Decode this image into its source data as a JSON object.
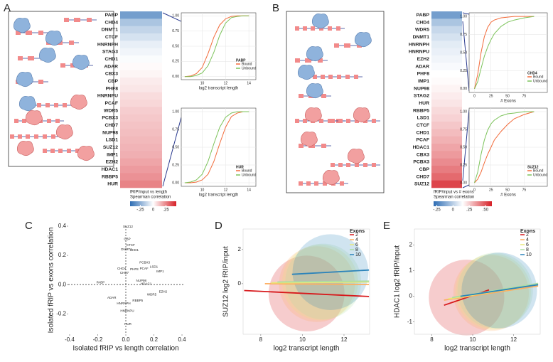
{
  "chart_data": [
    {
      "type": "heatmap",
      "panel": "A",
      "categories": [
        "PABP",
        "CHD4",
        "DNMT1",
        "CTCF",
        "HNRNPH",
        "STAG3",
        "CHD1",
        "ADAR",
        "CBX3",
        "CBP",
        "PHF8",
        "HNRNPU",
        "PCAF",
        "WDR5",
        "PCBX3",
        "CHD7",
        "NUP98",
        "LSD1",
        "SUZ12",
        "IMP1",
        "EZH2",
        "HDAC1",
        "RBBP5",
        "HUR"
      ],
      "values": [
        -0.3,
        -0.18,
        -0.13,
        -0.09,
        -0.05,
        -0.03,
        -0.01,
        0.01,
        0.02,
        0.04,
        0.05,
        0.07,
        0.08,
        0.1,
        0.11,
        0.12,
        0.13,
        0.14,
        0.15,
        0.16,
        0.18,
        0.2,
        0.22,
        0.25
      ],
      "colorbar_title": [
        "fRIP/input vs length",
        "Spearman correlation"
      ],
      "clim": [
        -0.45,
        0.45
      ],
      "colormap": [
        "#2e6db4",
        "#ffffff",
        "#d61f26"
      ],
      "colorbar_ticks": [
        {
          "value": -0.25,
          "label": "-.25"
        },
        0,
        {
          "value": 0.25,
          "label": ".25"
        }
      ]
    },
    {
      "type": "line",
      "legend_title": "PABP",
      "legend": "lower right",
      "grid": true,
      "x": [
        8.5,
        9,
        9.5,
        10,
        10.5,
        11,
        11.5,
        12,
        12.5,
        13,
        13.5,
        14
      ],
      "series": [
        {
          "name": "Bound",
          "color": "#f26b3a",
          "values": [
            0,
            0.01,
            0.05,
            0.15,
            0.38,
            0.65,
            0.85,
            0.95,
            0.99,
            1,
            1,
            1
          ]
        },
        {
          "name": "Unbound",
          "color": "#7cc35a",
          "values": [
            0,
            0,
            0.02,
            0.06,
            0.18,
            0.4,
            0.68,
            0.88,
            0.97,
            0.99,
            1,
            1
          ]
        }
      ],
      "xlabel": "log2 transcript length",
      "xlim": [
        8.2,
        14.6
      ],
      "xticks": [
        10,
        12,
        14
      ],
      "ylim": [
        -0.05,
        1.05
      ],
      "yticks": [
        {
          "value": 0,
          "label": "0.00"
        },
        {
          "value": 0.25,
          "label": "0.25"
        },
        {
          "value": 0.5,
          "label": "0.50"
        },
        {
          "value": 0.75,
          "label": "0.75"
        },
        {
          "value": 1,
          "label": "1.00"
        }
      ]
    },
    {
      "type": "line",
      "legend_title": "HUR",
      "legend": "lower right",
      "grid": true,
      "x": [
        8.5,
        9,
        9.5,
        10,
        10.5,
        11,
        11.5,
        12,
        12.5,
        13,
        13.5,
        14
      ],
      "series": [
        {
          "name": "Bound",
          "color": "#f26b3a",
          "values": [
            0,
            0,
            0.01,
            0.04,
            0.12,
            0.3,
            0.55,
            0.78,
            0.93,
            0.98,
            1,
            1
          ]
        },
        {
          "name": "Unbound",
          "color": "#7cc35a",
          "values": [
            0,
            0.01,
            0.04,
            0.12,
            0.3,
            0.55,
            0.78,
            0.92,
            0.98,
            1,
            1,
            1
          ]
        }
      ],
      "xlabel": "log2 transcript length",
      "xlim": [
        8.2,
        14.6
      ],
      "xticks": [
        10,
        12,
        14
      ],
      "ylim": [
        -0.05,
        1.05
      ],
      "yticks": [
        {
          "value": 0,
          "label": "0.00"
        },
        {
          "value": 0.25,
          "label": "0.25"
        },
        {
          "value": 0.5,
          "label": "0.50"
        },
        {
          "value": 0.75,
          "label": "0.75"
        },
        {
          "value": 1,
          "label": "1.00"
        }
      ]
    },
    {
      "type": "heatmap",
      "panel": "B",
      "categories": [
        "PABP",
        "CHD4",
        "WDR5",
        "DNMT1",
        "HNRNPH",
        "HNRNPU",
        "EZH2",
        "ADAR",
        "PHF8",
        "IMP1",
        "NUP98",
        "STAG2",
        "HUR",
        "RBBP5",
        "LSD1",
        "CTCF",
        "CHD1",
        "PCAF",
        "HDAC1",
        "CBX3",
        "PCBX3",
        "CBP",
        "CHD7",
        "SUZ12"
      ],
      "values": [
        -0.2,
        -0.12,
        -0.08,
        -0.06,
        -0.04,
        -0.03,
        -0.02,
        -0.01,
        0,
        0.01,
        0.03,
        0.05,
        0.07,
        0.1,
        0.12,
        0.15,
        0.18,
        0.21,
        0.24,
        0.27,
        0.31,
        0.35,
        0.4,
        0.5
      ],
      "colorbar_title": [
        "fRIP/input vs # exons",
        "Spearman correlation"
      ],
      "clim": [
        -0.3,
        0.6
      ],
      "colormap": [
        "#2e6db4",
        "#ffffff",
        "#d61f26"
      ],
      "colorbar_ticks": [
        {
          "value": -0.25,
          "label": "-.25"
        },
        0,
        {
          "value": 0.25,
          "label": ".25"
        },
        {
          "value": 0.5,
          "label": ".50"
        }
      ]
    },
    {
      "type": "line",
      "legend_title": "CHD4",
      "legend": "lower right",
      "grid": true,
      "x": [
        0,
        5,
        10,
        15,
        20,
        25,
        30,
        40,
        50,
        60,
        75,
        90
      ],
      "series": [
        {
          "name": "Bound",
          "color": "#f26b3a",
          "values": [
            0,
            0.2,
            0.5,
            0.72,
            0.85,
            0.92,
            0.95,
            0.98,
            0.99,
            1,
            1,
            1
          ]
        },
        {
          "name": "Unbound",
          "color": "#7cc35a",
          "values": [
            0,
            0.1,
            0.28,
            0.45,
            0.58,
            0.68,
            0.76,
            0.86,
            0.92,
            0.95,
            0.98,
            1
          ]
        }
      ],
      "xlabel": "# Exons",
      "xlim": [
        -8,
        110
      ],
      "xticks": [
        0,
        25,
        50,
        75
      ],
      "ylim": [
        -0.05,
        1.05
      ],
      "yticks": [
        {
          "value": 0,
          "label": "0.00"
        },
        {
          "value": 0.25,
          "label": "0.25"
        },
        {
          "value": 0.5,
          "label": "0.50"
        },
        {
          "value": 0.75,
          "label": "0.75"
        },
        {
          "value": 1,
          "label": "1.00"
        }
      ]
    },
    {
      "type": "line",
      "legend_title": "SUZ12",
      "legend": "lower right",
      "grid": true,
      "x": [
        0,
        5,
        10,
        15,
        20,
        25,
        30,
        40,
        50,
        60,
        75,
        90
      ],
      "series": [
        {
          "name": "Bound",
          "color": "#f26b3a",
          "values": [
            0,
            0.05,
            0.15,
            0.28,
            0.4,
            0.5,
            0.6,
            0.72,
            0.82,
            0.9,
            0.96,
            1
          ]
        },
        {
          "name": "Unbound",
          "color": "#7cc35a",
          "values": [
            0,
            0.15,
            0.4,
            0.6,
            0.74,
            0.83,
            0.88,
            0.94,
            0.97,
            0.98,
            1,
            1
          ]
        }
      ],
      "xlabel": "# Exons",
      "xlim": [
        -8,
        110
      ],
      "xticks": [
        0,
        25,
        50,
        75
      ],
      "ylim": [
        -0.05,
        1.05
      ],
      "yticks": [
        {
          "value": 0,
          "label": "0.00"
        },
        {
          "value": 0.25,
          "label": "0.25"
        },
        {
          "value": 0.5,
          "label": "0.50"
        },
        {
          "value": 0.75,
          "label": "0.75"
        },
        {
          "value": 1,
          "label": "1.00"
        }
      ]
    },
    {
      "type": "scatter",
      "panel": "C",
      "labels": [
        "PABP",
        "SUZ12",
        "CBP",
        "CTCF",
        "DNMT1",
        "CHD1",
        "PCBX3",
        "CHD4",
        "CHD7",
        "PHF8",
        "PCAF",
        "LSD1",
        "IMP1",
        "NUP98",
        "HDAC1",
        "WDR5",
        "EZH2",
        "RBBP5",
        "ADAR",
        "HNRNPH",
        "HNRNPU",
        "HUR"
      ],
      "x": [
        -0.18,
        0.015,
        0.01,
        0.035,
        0.005,
        0.06,
        0.135,
        -0.03,
        -0.01,
        0.06,
        0.13,
        0.2,
        0.245,
        0.11,
        0.145,
        0.185,
        0.265,
        0.085,
        -0.1,
        -0.015,
        0.01,
        0.015
      ],
      "values": [
        0.015,
        0.395,
        0.31,
        0.27,
        0.24,
        0.235,
        0.15,
        0.11,
        0.08,
        0.105,
        0.11,
        0.12,
        0.09,
        0.025,
        0.005,
        -0.07,
        -0.05,
        -0.11,
        -0.09,
        -0.13,
        -0.18,
        -0.27
      ],
      "xlabel": "Isolated fRIP vs length correlation",
      "ylabel": "Isolated fRIP vs exons correlation",
      "zero_lines": true,
      "xlim": [
        -0.41,
        0.41
      ],
      "xticks": [
        {
          "value": -0.4,
          "label": "-0.4"
        },
        {
          "value": -0.2,
          "label": "-0.2"
        },
        {
          "value": 0,
          "label": "0.0"
        },
        {
          "value": 0.2,
          "label": "0.2"
        },
        {
          "value": 0.4,
          "label": "0.4"
        }
      ],
      "ylim": [
        -0.34,
        0.4
      ],
      "yticks": [
        {
          "value": -0.2,
          "label": "-0.2"
        },
        {
          "value": 0,
          "label": "0.0"
        },
        {
          "value": 0.2,
          "label": "0.2"
        },
        {
          "value": 0.4,
          "label": "0.4"
        }
      ]
    },
    {
      "type": "line",
      "panel": "D",
      "legend_title": "Exons",
      "legend": "upper right",
      "series": [
        {
          "name": "2",
          "color": "#d7191c",
          "x": [
            7.2,
            13.2
          ],
          "values": [
            -0.4,
            -0.75
          ]
        },
        {
          "name": "4",
          "color": "#fdae61",
          "x": [
            8.2,
            13.2
          ],
          "values": [
            0.0,
            -0.05
          ]
        },
        {
          "name": "6",
          "color": "#e8e87a",
          "x": [
            8.5,
            13.2
          ],
          "values": [
            0.05,
            0.1
          ]
        },
        {
          "name": "8",
          "color": "#abdda4",
          "x": [
            8.8,
            13.2
          ],
          "values": [
            0.1,
            0.15
          ]
        },
        {
          "name": "10",
          "color": "#2b83ba",
          "x": [
            9.5,
            13.2
          ],
          "values": [
            0.55,
            0.8
          ]
        }
      ],
      "xlabel": "log2 transcript length",
      "ylabel": "SUZ12 log2 fRIP/input",
      "xlim": [
        7.15,
        13.23
      ],
      "xticks": [
        8,
        10,
        12
      ],
      "ylim": [
        -2.96,
        3.2
      ],
      "yticks": [
        0,
        2
      ]
    },
    {
      "type": "line",
      "panel": "E",
      "legend_title": "Exons",
      "legend": "upper right",
      "series": [
        {
          "name": "2",
          "color": "#d7191c",
          "x": [
            8.6,
            10.8
          ],
          "values": [
            -0.35,
            0.25
          ]
        },
        {
          "name": "4",
          "color": "#fdae61",
          "x": [
            8.6,
            13.2
          ],
          "values": [
            -0.15,
            0.4
          ]
        },
        {
          "name": "6",
          "color": "#e8e87a",
          "x": [
            8.8,
            13.2
          ],
          "values": [
            -0.1,
            0.45
          ]
        },
        {
          "name": "8",
          "color": "#abdda4",
          "x": [
            9.0,
            13.2
          ],
          "values": [
            -0.05,
            0.5
          ]
        },
        {
          "name": "10",
          "color": "#2b83ba",
          "x": [
            9.4,
            13.2
          ],
          "values": [
            0.0,
            0.45
          ]
        }
      ],
      "xlabel": "log2 transcript length",
      "ylabel": "HDAC1 log2 fRIP/input",
      "xlim": [
        7.15,
        13.3
      ],
      "xticks": [
        8,
        10,
        12
      ],
      "ylim": [
        -1.48,
        2.62
      ],
      "yticks": [
        -1,
        0,
        1,
        2
      ]
    }
  ]
}
